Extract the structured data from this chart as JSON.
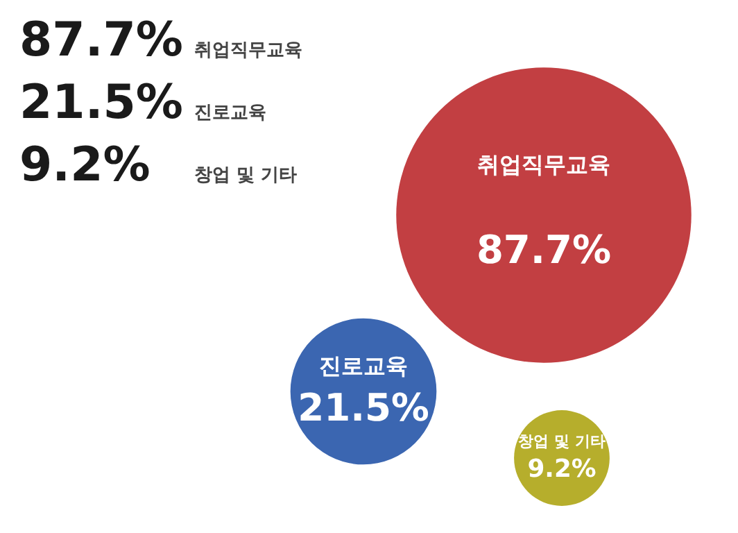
{
  "chart_data": {
    "type": "other",
    "categories": [
      "취업직무교육",
      "진로교육",
      "창업 및 기타"
    ],
    "values": [
      87.7,
      21.5,
      9.2
    ],
    "value_labels": [
      "87.7%",
      "21.5%",
      "9.2%"
    ],
    "colors": [
      "#c23f42",
      "#3b66b1",
      "#b6ae2c"
    ]
  }
}
